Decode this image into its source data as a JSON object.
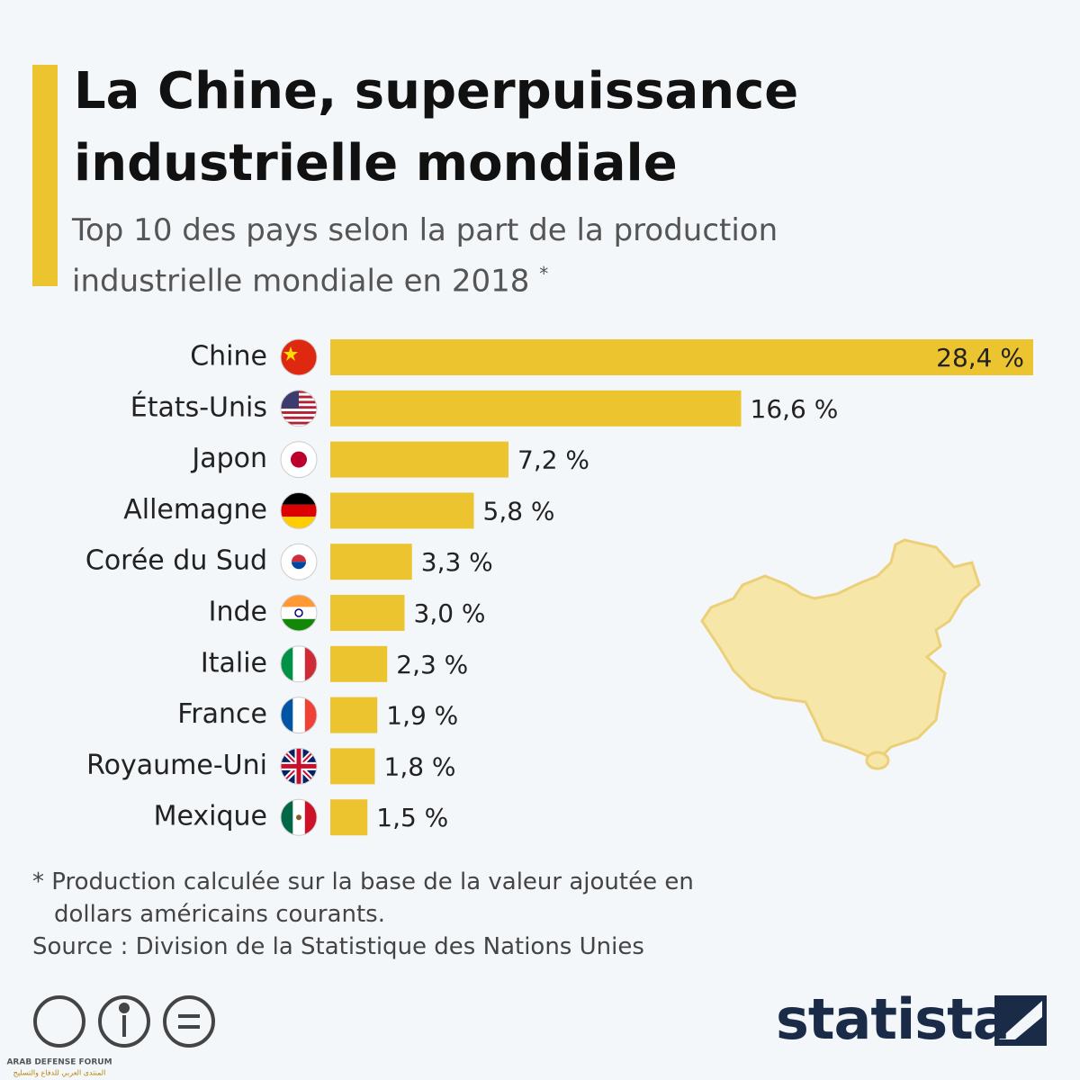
{
  "chart_data": {
    "type": "bar",
    "orientation": "horizontal",
    "title": "La Chine, superpuissance industrielle mondiale",
    "subtitle": "Top 10 des pays selon la part de la production industrielle mondiale en 2018",
    "subtitle_marker": "*",
    "categories": [
      "Chine",
      "États-Unis",
      "Japon",
      "Allemagne",
      "Corée du Sud",
      "Inde",
      "Italie",
      "France",
      "Royaume-Uni",
      "Mexique"
    ],
    "values": [
      28.4,
      16.6,
      7.2,
      5.8,
      3.3,
      3.0,
      2.3,
      1.9,
      1.8,
      1.5
    ],
    "value_labels": [
      "28,4 %",
      "16,6 %",
      "7,2 %",
      "5,8 %",
      "3,3 %",
      "3,0 %",
      "2,3 %",
      "1,9 %",
      "1,8 %",
      "1,5 %"
    ],
    "color": "#ebc430",
    "footnote": "* Production calculée sur la base de la valeur ajoutée en dollars américains courants.",
    "source": "Source : Division de la Statistique des Nations Unies",
    "logo": "statista",
    "watermark": {
      "name": "ARAB DEFENSE FORUM",
      "arabic": "المنتدى العربي للدفاع والتسليح"
    }
  }
}
